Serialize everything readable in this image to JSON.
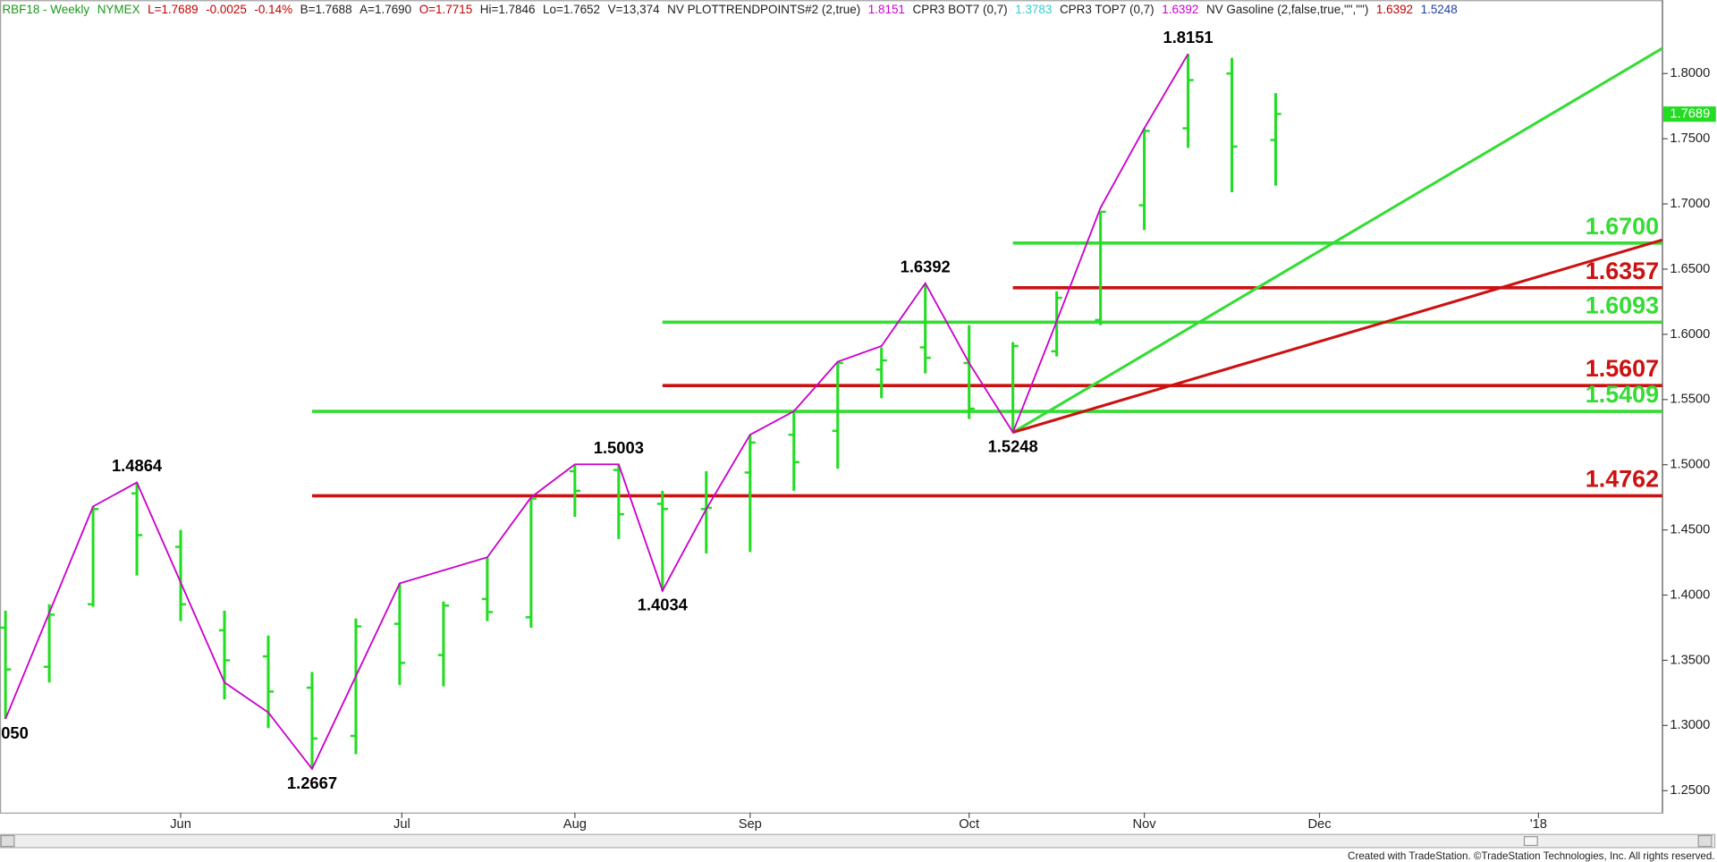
{
  "chart_data": {
    "type": "ohlc",
    "header": [
      {
        "text": "RBF18 - Weekly",
        "color": "#1a9a1a"
      },
      {
        "text": "NYMEX",
        "color": "#1a9a1a"
      },
      {
        "text": "L=1.7689",
        "color": "#c00000"
      },
      {
        "text": "-0.0025",
        "color": "#c00000"
      },
      {
        "text": "-0.14%",
        "color": "#c00000"
      },
      {
        "text": "B=1.7688",
        "color": "#202020"
      },
      {
        "text": "A=1.7690",
        "color": "#202020"
      },
      {
        "text": "O=1.7715",
        "color": "#c00000"
      },
      {
        "text": "Hi=1.7846",
        "color": "#202020"
      },
      {
        "text": "Lo=1.7652",
        "color": "#202020"
      },
      {
        "text": "V=13,374",
        "color": "#202020"
      },
      {
        "text": "NV  PLOTTRENDPOINTS#2 (2,true)",
        "color": "#202020"
      },
      {
        "text": "1.8151",
        "color": "#cc00cc"
      },
      {
        "text": "CPR3 BOT7 (0,7)",
        "color": "#202020"
      },
      {
        "text": "1.3783",
        "color": "#33cccc"
      },
      {
        "text": "CPR3 TOP7 (0,7)",
        "color": "#202020"
      },
      {
        "text": "1.6392",
        "color": "#cc00cc"
      },
      {
        "text": "NV Gasoline (2,false,true,\"\",\"\")",
        "color": "#202020"
      },
      {
        "text": "1.6392",
        "color": "#c00000"
      },
      {
        "text": "1.5248",
        "color": "#1f3fa0"
      }
    ],
    "color": "#22dd22",
    "open": [
      1.375,
      1.345,
      1.393,
      1.478,
      1.437,
      1.373,
      1.353,
      1.329,
      1.292,
      1.378,
      1.354,
      1.397,
      1.383,
      1.495,
      1.496,
      1.47,
      1.466,
      1.494,
      1.523,
      1.526,
      1.573,
      1.59,
      1.578,
      1.541,
      1.587,
      1.611,
      1.699,
      1.758,
      1.8,
      1.749
    ],
    "high": [
      1.388,
      1.393,
      1.468,
      1.486,
      1.45,
      1.388,
      1.369,
      1.341,
      1.382,
      1.409,
      1.395,
      1.429,
      1.475,
      1.5,
      1.5,
      1.48,
      1.495,
      1.523,
      1.541,
      1.579,
      1.59,
      1.639,
      1.607,
      1.594,
      1.633,
      1.694,
      1.758,
      1.815,
      1.812,
      1.785
    ],
    "low": [
      1.305,
      1.333,
      1.391,
      1.415,
      1.38,
      1.32,
      1.298,
      1.267,
      1.278,
      1.331,
      1.33,
      1.38,
      1.375,
      1.46,
      1.443,
      1.403,
      1.432,
      1.433,
      1.48,
      1.497,
      1.551,
      1.57,
      1.535,
      1.525,
      1.583,
      1.607,
      1.68,
      1.743,
      1.709,
      1.714
    ],
    "close": [
      1.343,
      1.385,
      1.466,
      1.446,
      1.393,
      1.35,
      1.326,
      1.29,
      1.376,
      1.348,
      1.392,
      1.387,
      1.474,
      1.48,
      1.462,
      1.466,
      1.467,
      1.517,
      1.502,
      1.578,
      1.58,
      1.582,
      1.543,
      1.591,
      1.628,
      1.694,
      1.756,
      1.795,
      1.744,
      1.769
    ],
    "trend": {
      "color": "#cc00cc",
      "x": [
        0,
        2,
        3,
        5,
        6,
        7,
        9,
        11,
        12,
        13,
        14,
        15,
        16,
        17,
        18,
        19,
        20,
        21,
        22,
        23,
        24,
        25,
        26,
        27
      ],
      "values": [
        1.305,
        1.468,
        1.4864,
        1.333,
        1.31,
        1.2667,
        1.409,
        1.429,
        1.475,
        1.5003,
        1.5003,
        1.4034,
        1.466,
        1.523,
        1.541,
        1.579,
        1.591,
        1.6392,
        1.578,
        1.5248,
        1.61,
        1.697,
        1.758,
        1.8151
      ]
    },
    "annotations": [
      {
        "text": "050",
        "x": 0,
        "y": 1.305,
        "pivot": "low"
      },
      {
        "text": "1.4864",
        "x": 3,
        "y": 1.4864,
        "pivot": "high"
      },
      {
        "text": "1.2667",
        "x": 7,
        "y": 1.2667,
        "pivot": "low"
      },
      {
        "text": "1.5003",
        "x": 14,
        "y": 1.5003,
        "pivot": "high"
      },
      {
        "text": "1.4034",
        "x": 15,
        "y": 1.4034,
        "pivot": "low"
      },
      {
        "text": "1.6392",
        "x": 21,
        "y": 1.6392,
        "pivot": "high"
      },
      {
        "text": "1.5248",
        "x": 23,
        "y": 1.5248,
        "pivot": "low"
      },
      {
        "text": "1.8151",
        "x": 27,
        "y": 1.8151,
        "pivot": "high"
      }
    ],
    "levels": [
      {
        "value": 1.67,
        "label": "1.6700",
        "color": "#33dd33",
        "start": 23
      },
      {
        "value": 1.6357,
        "label": "1.6357",
        "color": "#cc1111",
        "start": 23
      },
      {
        "value": 1.6093,
        "label": "1.6093",
        "color": "#33dd33",
        "start": 15
      },
      {
        "value": 1.5607,
        "label": "1.5607",
        "color": "#cc1111",
        "start": 15
      },
      {
        "value": 1.5409,
        "label": "1.5409",
        "color": "#33dd33",
        "start": 7
      },
      {
        "value": 1.4762,
        "label": "1.4762",
        "color": "#cc1111",
        "start": 7
      }
    ],
    "trendlines": [
      {
        "color": "#33dd33",
        "x": [
          23,
          37.825
        ],
        "y": [
          1.5248,
          1.8193
        ]
      },
      {
        "color": "#cc1111",
        "x": [
          23,
          37.825
        ],
        "y": [
          1.5248,
          1.6724
        ]
      }
    ],
    "last": {
      "value": 1.7689,
      "label": "1.7689"
    },
    "xlim": [
      -0.125,
      37.825
    ],
    "xticks": [
      {
        "value": 4,
        "label": "Jun"
      },
      {
        "value": 9.05,
        "label": "Jul"
      },
      {
        "value": 13,
        "label": "Aug"
      },
      {
        "value": 17,
        "label": "Sep"
      },
      {
        "value": 22,
        "label": "Oct"
      },
      {
        "value": 26,
        "label": "Nov"
      },
      {
        "value": 30,
        "label": "Dec"
      },
      {
        "value": 35,
        "label": "'18"
      }
    ],
    "ylim": [
      1.2332,
      1.8563
    ],
    "yticks": [
      {
        "value": 1.25,
        "label": "1.2500"
      },
      {
        "value": 1.3,
        "label": "1.3000"
      },
      {
        "value": 1.35,
        "label": "1.3500"
      },
      {
        "value": 1.4,
        "label": "1.4000"
      },
      {
        "value": 1.45,
        "label": "1.4500"
      },
      {
        "value": 1.5,
        "label": "1.5000"
      },
      {
        "value": 1.55,
        "label": "1.5500"
      },
      {
        "value": 1.6,
        "label": "1.6000"
      },
      {
        "value": 1.65,
        "label": "1.6500"
      },
      {
        "value": 1.7,
        "label": "1.7000"
      },
      {
        "value": 1.75,
        "label": "1.7500"
      },
      {
        "value": 1.8,
        "label": "1.8000"
      }
    ],
    "footer": "Created with TradeStation. ©TradeStation Technologies, Inc. All rights reserved."
  }
}
